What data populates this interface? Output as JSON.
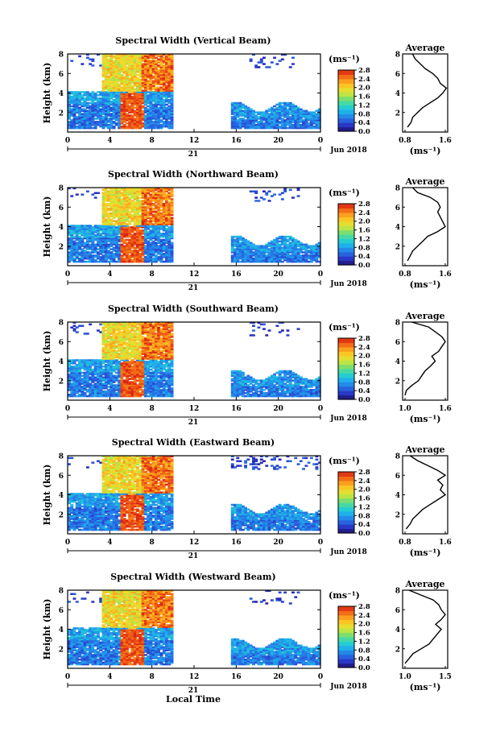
{
  "colorbar_ticks": [
    "2.8",
    "2.4",
    "2.0",
    "1.6",
    "1.2",
    "0.8",
    "0.4",
    "0.0"
  ],
  "colorbar_unit": "(ms⁻¹)",
  "avg_title": "Average",
  "avg_xlabel": "(ms⁻¹)",
  "xlabel_bottom": "Local Time",
  "ylabel": "Height (km)",
  "date_label": "Jun 2018",
  "day_label": "21",
  "x_ticks": [
    "0",
    "4",
    "8",
    "12",
    "16",
    "20",
    "0"
  ],
  "y_ticks": [
    "8",
    "6",
    "4",
    "2"
  ],
  "chart_data": [
    {
      "type": "heatmap",
      "title": "Spectral Width (Vertical Beam)",
      "xlabel": "21",
      "ylabel": "Height (km)",
      "xlim": [
        0,
        24
      ],
      "ylim": [
        0,
        8
      ],
      "colorbar_range": [
        0.0,
        2.8
      ],
      "upper_band_kind": "sparse",
      "average_profile": {
        "title": "Average",
        "xlabel": "(ms⁻¹)",
        "xlim": [
          0.8,
          1.6
        ],
        "x_tick_labels": [
          "0.8",
          "1.6"
        ],
        "heights_km": [
          0.5,
          1.0,
          1.5,
          2.0,
          2.5,
          3.0,
          3.5,
          4.0,
          4.5,
          5.0,
          5.5,
          6.0,
          6.5,
          7.0,
          7.5,
          8.0
        ],
        "values": [
          0.85,
          0.92,
          0.95,
          1.05,
          1.15,
          1.3,
          1.45,
          1.55,
          1.62,
          1.5,
          1.45,
          1.35,
          1.2,
          1.1,
          1.0,
          0.95
        ]
      }
    },
    {
      "type": "heatmap",
      "title": "Spectral Width (Northward Beam)",
      "xlabel": "21",
      "ylabel": "Height (km)",
      "xlim": [
        0,
        24
      ],
      "ylim": [
        0,
        8
      ],
      "colorbar_range": [
        0.0,
        2.8
      ],
      "upper_band_kind": "sparse",
      "average_profile": {
        "title": "Average",
        "xlabel": "(ms⁻¹)",
        "xlim": [
          0.8,
          1.6
        ],
        "x_tick_labels": [
          "0.8",
          "1.6"
        ],
        "heights_km": [
          0.5,
          1.0,
          1.5,
          2.0,
          2.5,
          3.0,
          3.5,
          4.0,
          4.5,
          5.0,
          5.5,
          6.0,
          6.5,
          7.0,
          7.5,
          8.0
        ],
        "values": [
          0.85,
          0.9,
          0.95,
          1.05,
          1.15,
          1.25,
          1.45,
          1.6,
          1.55,
          1.5,
          1.45,
          1.5,
          1.45,
          1.3,
          1.05,
          0.95
        ]
      }
    },
    {
      "type": "heatmap",
      "title": "Spectral Width (Southward Beam)",
      "xlabel": "21",
      "ylabel": "Height (km)",
      "xlim": [
        0,
        24
      ],
      "ylim": [
        0,
        8
      ],
      "colorbar_range": [
        0.0,
        2.8
      ],
      "upper_band_kind": "sparse",
      "average_profile": {
        "title": "Average",
        "xlabel": "(ms⁻¹)",
        "xlim": [
          1.0,
          1.6
        ],
        "x_tick_labels": [
          "1.0",
          "1.6"
        ],
        "heights_km": [
          0.5,
          1.0,
          1.5,
          2.0,
          2.5,
          3.0,
          3.5,
          4.0,
          4.5,
          5.0,
          5.5,
          6.0,
          6.5,
          7.0,
          7.5,
          8.0
        ],
        "values": [
          1.0,
          1.02,
          1.1,
          1.2,
          1.25,
          1.3,
          1.38,
          1.45,
          1.4,
          1.5,
          1.55,
          1.6,
          1.55,
          1.45,
          1.35,
          1.1
        ]
      }
    },
    {
      "type": "heatmap",
      "title": "Spectral Width (Eastward Beam)",
      "xlabel": "21",
      "ylabel": "Height (km)",
      "xlim": [
        0,
        24
      ],
      "ylim": [
        0,
        8
      ],
      "colorbar_range": [
        0.0,
        2.8
      ],
      "upper_band_kind": "dense",
      "average_profile": {
        "title": "Average",
        "xlabel": "(ms⁻¹)",
        "xlim": [
          0.8,
          1.6
        ],
        "x_tick_labels": [
          "0.8",
          "1.6"
        ],
        "heights_km": [
          0.5,
          1.0,
          1.5,
          2.0,
          2.5,
          3.0,
          3.5,
          4.0,
          4.5,
          5.0,
          5.5,
          6.0,
          6.5,
          7.0,
          7.5,
          8.0
        ],
        "values": [
          0.82,
          0.9,
          0.95,
          1.05,
          1.15,
          1.3,
          1.45,
          1.6,
          1.5,
          1.55,
          1.45,
          1.6,
          1.45,
          1.25,
          1.05,
          0.9
        ]
      }
    },
    {
      "type": "heatmap",
      "title": "Spectral Width (Westward Beam)",
      "xlabel": "Local Time",
      "ylabel": "Height (km)",
      "xlim": [
        0,
        24
      ],
      "ylim": [
        0,
        8
      ],
      "colorbar_range": [
        0.0,
        2.8
      ],
      "upper_band_kind": "sparse",
      "average_profile": {
        "title": "Average",
        "xlabel": "(ms⁻¹)",
        "xlim": [
          1.0,
          1.5
        ],
        "x_tick_labels": [
          "1.0",
          "1.5"
        ],
        "heights_km": [
          0.5,
          1.0,
          1.5,
          2.0,
          2.5,
          3.0,
          3.5,
          4.0,
          4.5,
          5.0,
          5.5,
          6.0,
          6.5,
          7.0,
          7.5,
          8.0
        ],
        "values": [
          1.0,
          1.05,
          1.1,
          1.2,
          1.3,
          1.35,
          1.4,
          1.45,
          1.38,
          1.45,
          1.5,
          1.45,
          1.42,
          1.35,
          1.2,
          1.05
        ]
      }
    }
  ]
}
